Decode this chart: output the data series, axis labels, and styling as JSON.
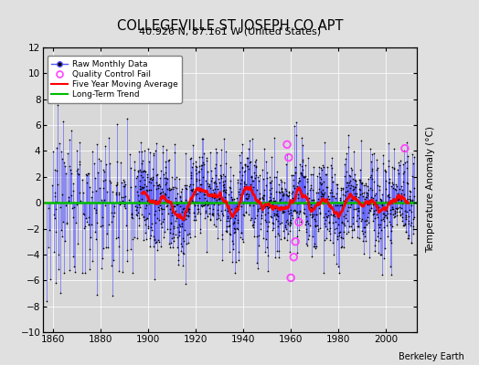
{
  "title": "COLLEGEVILLE ST JOSEPH CO APT",
  "subtitle": "40.926 N, 87.161 W (United States)",
  "ylabel": "Temperature Anomaly (°C)",
  "credit": "Berkeley Earth",
  "xmin": 1856,
  "xmax": 2013,
  "ymin": -10,
  "ymax": 12,
  "yticks": [
    -10,
    -8,
    -6,
    -4,
    -2,
    0,
    2,
    4,
    6,
    8,
    10,
    12
  ],
  "xticks": [
    1860,
    1880,
    1900,
    1920,
    1940,
    1960,
    1980,
    2000
  ],
  "bg_color": "#e0e0e0",
  "plot_bg_color": "#d8d8d8",
  "raw_line_color": "#5555ff",
  "raw_dot_color": "#000000",
  "qc_color": "#ff44ff",
  "moving_avg_color": "#ff0000",
  "trend_color": "#00bb00",
  "seed": 137,
  "start_year": 1857.5,
  "n_months_sparse": 450,
  "sparse_start": 1857.5,
  "sparse_end": 1895.0,
  "dense_start": 1895.0,
  "dense_end": 2012.0,
  "n_months_dense": 1404
}
